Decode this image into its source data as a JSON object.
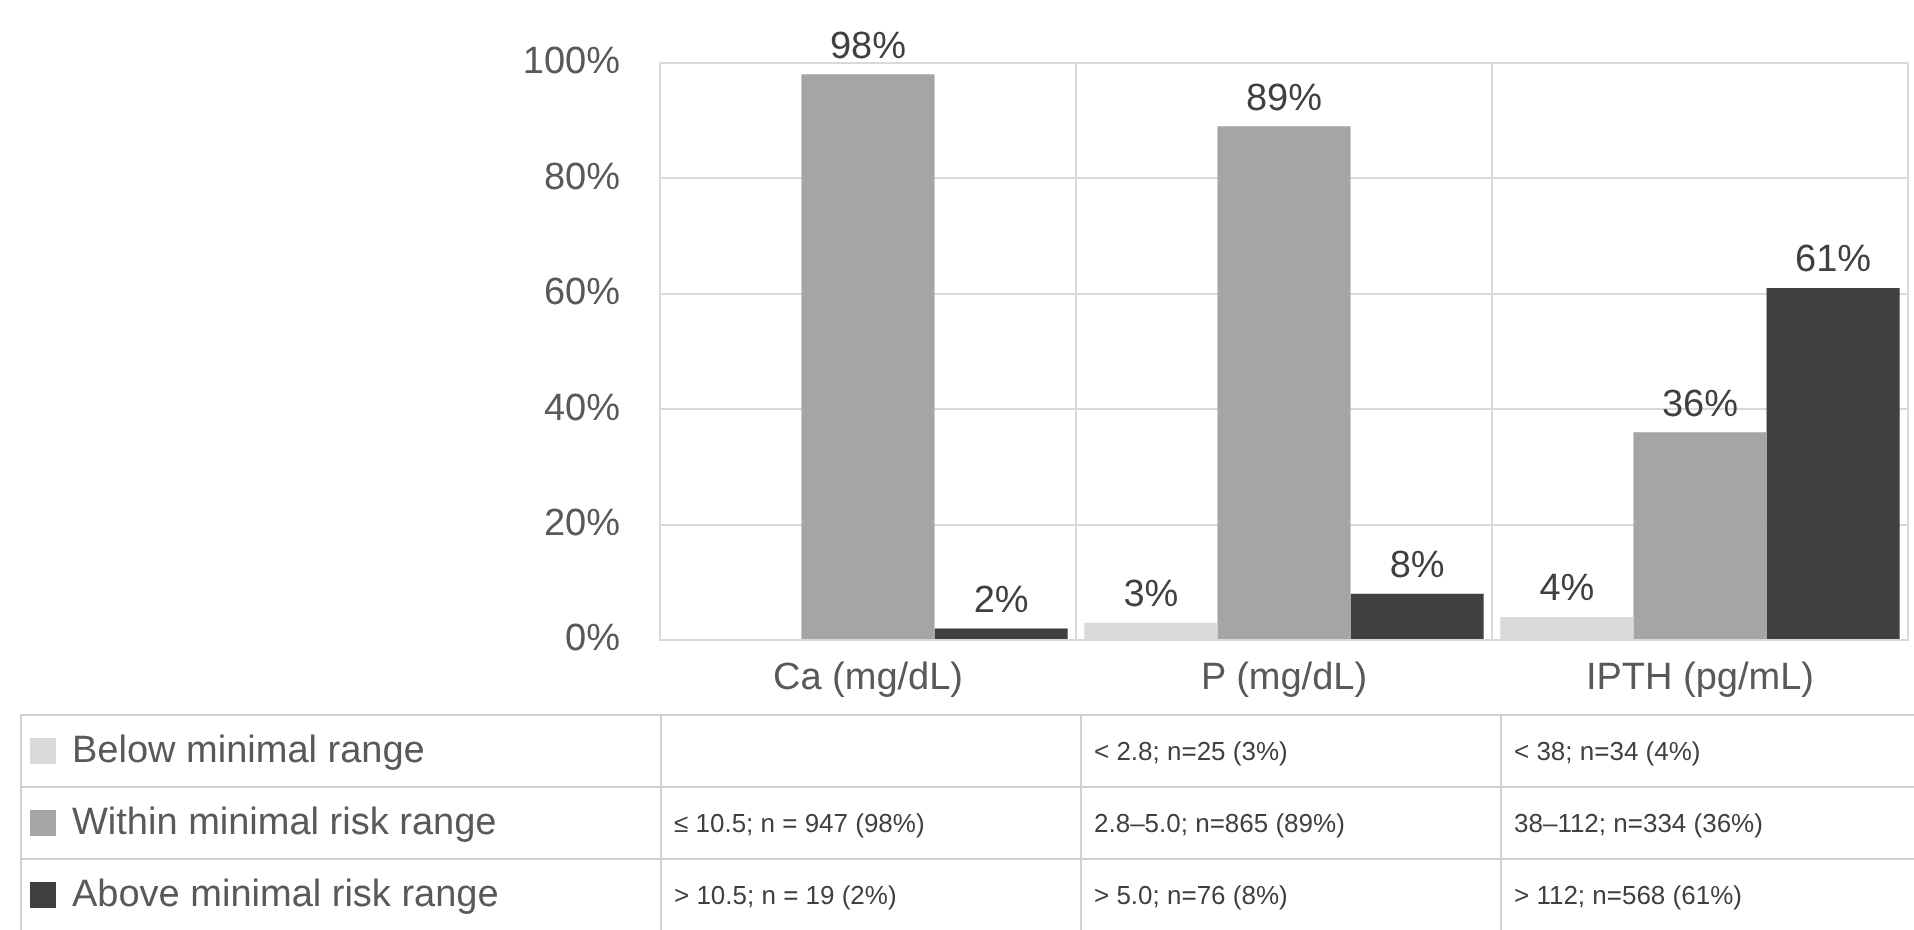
{
  "chart_data": {
    "type": "bar",
    "categories": [
      "Ca (mg/dL)",
      "P (mg/dL)",
      "IPTH (pg/mL)"
    ],
    "series": [
      {
        "name": "Below minimal range",
        "color": "#d9d9d9",
        "values": [
          null,
          3,
          4
        ],
        "value_labels": [
          null,
          "3%",
          "4%"
        ]
      },
      {
        "name": "Within minimal risk range",
        "color": "#a5a5a5",
        "values": [
          98,
          89,
          36
        ],
        "value_labels": [
          "98%",
          "89%",
          "36%"
        ]
      },
      {
        "name": "Above minimal risk range",
        "color": "#404040",
        "values": [
          2,
          8,
          61
        ],
        "value_labels": [
          "2%",
          "8%",
          "61%"
        ]
      }
    ],
    "ylim": [
      0,
      100
    ],
    "yticks": [
      {
        "value": 0,
        "label": "0%"
      },
      {
        "value": 20,
        "label": "20%"
      },
      {
        "value": 40,
        "label": "40%"
      },
      {
        "value": 60,
        "label": "60%"
      },
      {
        "value": 80,
        "label": "80%"
      },
      {
        "value": 100,
        "label": "100%"
      }
    ],
    "grid": true,
    "legend": "bottom",
    "annotations": [
      "< 2.8; n=25 (3%)",
      "< 38; n=34 (4%)",
      "≤ 10.5; n = 947 (98%)",
      "2.8–5.0; n=865 (89%)",
      "38–112; n=334 (36%)",
      "> 10.5; n = 19 (2%)",
      "> 5.0; n=76 (8%)",
      "> 112; n=568 (61%)"
    ]
  }
}
